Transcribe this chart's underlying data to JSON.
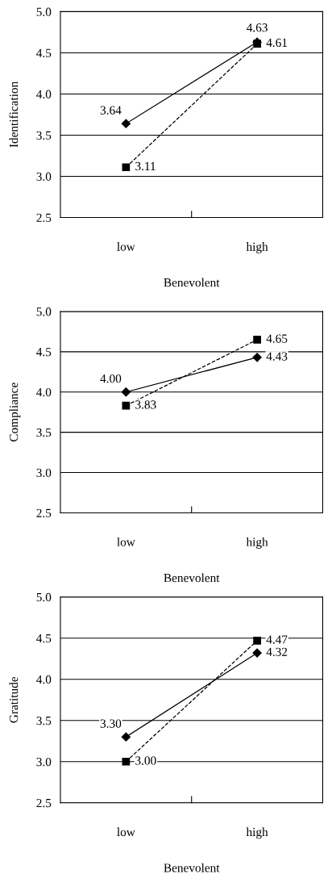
{
  "chart_data": [
    {
      "type": "line",
      "ylabel": "Identification",
      "xlabel": "Benevolent",
      "categories": [
        "low",
        "high"
      ],
      "ylim": [
        2.5,
        5.0
      ],
      "yticks": [
        {
          "value": 2.5,
          "label": "2.5"
        },
        {
          "value": 3.0,
          "label": "3.0"
        },
        {
          "value": 3.5,
          "label": "3.5"
        },
        {
          "value": 4.0,
          "label": "4.0"
        },
        {
          "value": 4.5,
          "label": "4.5"
        },
        {
          "value": 5.0,
          "label": "5.0"
        }
      ],
      "grid": "y",
      "series": [
        {
          "color": "#000000",
          "marker": "diamond",
          "line_style": "solid",
          "values": [
            3.64,
            4.63
          ],
          "value_labels": [
            "3.64",
            "4.63"
          ]
        },
        {
          "color": "#000000",
          "marker": "square",
          "line_style": "dashed",
          "values": [
            3.11,
            4.61
          ],
          "value_labels": [
            "3.11",
            "4.61"
          ]
        }
      ]
    },
    {
      "type": "line",
      "ylabel": "Compliance",
      "xlabel": "Benevolent",
      "categories": [
        "low",
        "high"
      ],
      "ylim": [
        2.5,
        5.0
      ],
      "yticks": [
        {
          "value": 2.5,
          "label": "2.5"
        },
        {
          "value": 3.0,
          "label": "3.0"
        },
        {
          "value": 3.5,
          "label": "3.5"
        },
        {
          "value": 4.0,
          "label": "4.0"
        },
        {
          "value": 4.5,
          "label": "4.5"
        },
        {
          "value": 5.0,
          "label": "5.0"
        }
      ],
      "grid": "y",
      "series": [
        {
          "color": "#000000",
          "marker": "diamond",
          "line_style": "solid",
          "values": [
            4.0,
            4.43
          ],
          "value_labels": [
            "4.00",
            "4.43"
          ]
        },
        {
          "color": "#000000",
          "marker": "square",
          "line_style": "dashed",
          "values": [
            3.83,
            4.65
          ],
          "value_labels": [
            "3.83",
            "4.65"
          ]
        }
      ]
    },
    {
      "type": "line",
      "ylabel": "Gratitude",
      "xlabel": "Benevolent",
      "categories": [
        "low",
        "high"
      ],
      "ylim": [
        2.5,
        5.0
      ],
      "yticks": [
        {
          "value": 2.5,
          "label": "2.5"
        },
        {
          "value": 3.0,
          "label": "3.0"
        },
        {
          "value": 3.5,
          "label": "3.5"
        },
        {
          "value": 4.0,
          "label": "4.0"
        },
        {
          "value": 4.5,
          "label": "4.5"
        },
        {
          "value": 5.0,
          "label": "5.0"
        }
      ],
      "grid": "y",
      "series": [
        {
          "color": "#000000",
          "marker": "diamond",
          "line_style": "solid",
          "values": [
            3.3,
            4.32
          ],
          "value_labels": [
            "3.30",
            "4.32"
          ]
        },
        {
          "color": "#000000",
          "marker": "square",
          "line_style": "dashed",
          "values": [
            3.0,
            4.47
          ],
          "value_labels": [
            "3.00",
            "4.47"
          ]
        }
      ]
    }
  ]
}
